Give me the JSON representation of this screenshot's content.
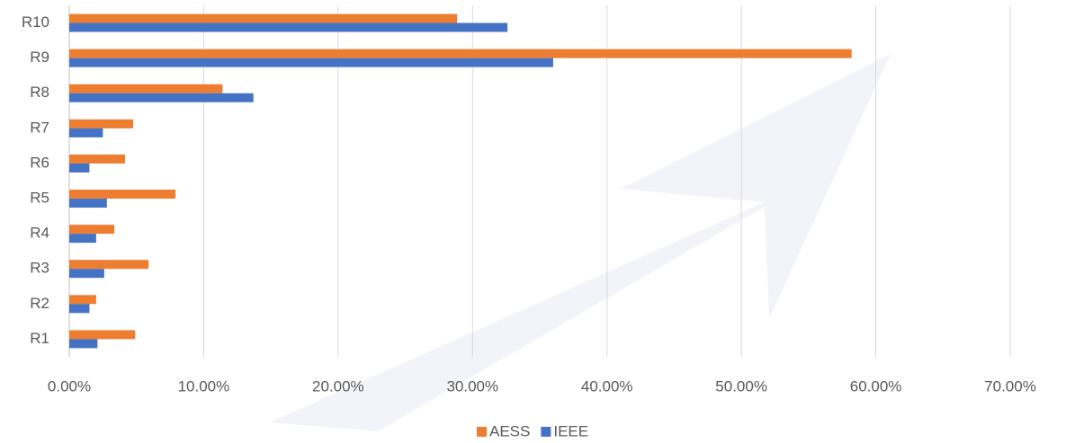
{
  "chart_data": {
    "type": "hbar",
    "categories": [
      "R1",
      "R2",
      "R3",
      "R4",
      "R5",
      "R6",
      "R7",
      "R8",
      "R9",
      "R10"
    ],
    "series": [
      {
        "name": "AESS",
        "color": "#ed7d31",
        "values": [
          4.9,
          2.0,
          5.9,
          3.35,
          7.9,
          4.15,
          4.75,
          11.4,
          58.2,
          28.85
        ]
      },
      {
        "name": "IEEE",
        "color": "#4472c4",
        "values": [
          2.1,
          1.5,
          2.6,
          2.0,
          2.8,
          1.5,
          2.5,
          13.7,
          36.0,
          32.6
        ]
      }
    ],
    "xlim": [
      0,
      70
    ],
    "xticks": [
      {
        "value": 0,
        "label": "0.00%"
      },
      {
        "value": 10,
        "label": "10.00%"
      },
      {
        "value": 20,
        "label": "20.00%"
      },
      {
        "value": 30,
        "label": "30.00%"
      },
      {
        "value": 40,
        "label": "40.00%"
      },
      {
        "value": 50,
        "label": "50.00%"
      },
      {
        "value": 60,
        "label": "60.00%"
      },
      {
        "value": 70,
        "label": "70.00%"
      }
    ],
    "grid": true,
    "legend": "bottom"
  }
}
